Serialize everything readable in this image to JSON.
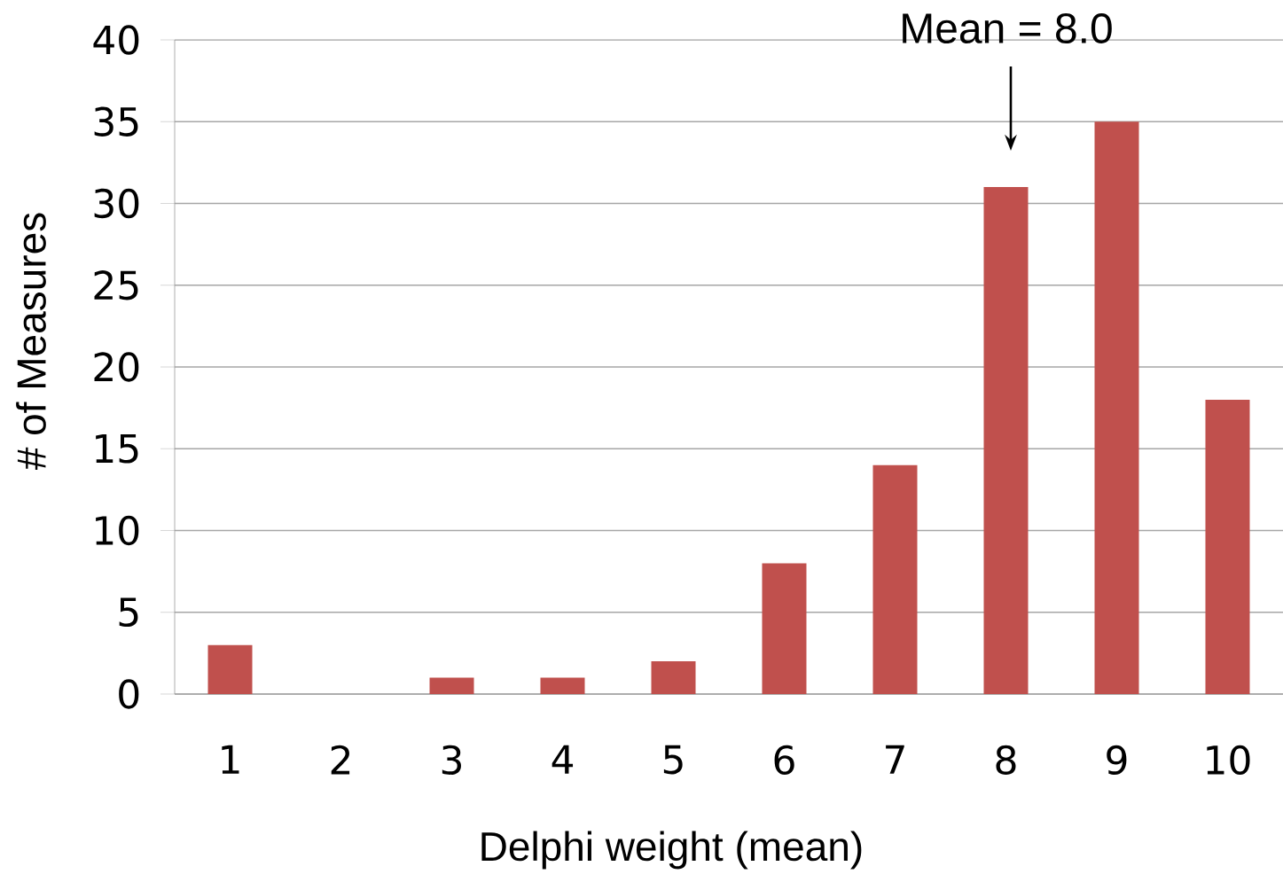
{
  "chart_data": {
    "type": "bar",
    "xlabel": "Delphi weight (mean)",
    "ylabel": "# of Measures",
    "categories": [
      "1",
      "2",
      "3",
      "4",
      "5",
      "6",
      "7",
      "8",
      "9",
      "10"
    ],
    "values": [
      3,
      0,
      1,
      1,
      2,
      8,
      14,
      31,
      35,
      18
    ],
    "color": "#c0504d",
    "ylim": [
      0,
      40
    ],
    "yticks": [
      0,
      5,
      10,
      15,
      20,
      25,
      30,
      35,
      40
    ],
    "grid": "y",
    "annotations": [
      "Mean = 8.0"
    ]
  }
}
